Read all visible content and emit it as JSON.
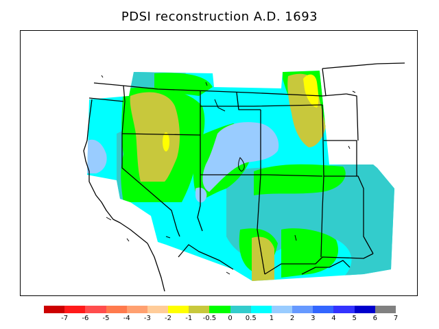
{
  "title": "PDSI reconstruction A.D. 1693",
  "legend": {
    "colors": [
      "#cc0000",
      "#ff1a1a",
      "#ff4d4d",
      "#ff7a4d",
      "#ffa070",
      "#ffcc99",
      "#ffff00",
      "#c8c83c",
      "#00ff00",
      "#33cccc",
      "#00ffff",
      "#99ccff",
      "#6699ff",
      "#3366ff",
      "#3333ff",
      "#0000cc",
      "#808080"
    ],
    "tick_labels": [
      "-7",
      "-6",
      "-5",
      "-4",
      "-3",
      "-2",
      "-1",
      "-0.5",
      "0",
      "0.5",
      "1",
      "2",
      "3",
      "4",
      "5",
      "6",
      "7"
    ]
  },
  "map_colors": {
    "dry_light": "#c8c83c",
    "yellow": "#ffff00",
    "green": "#00ff00",
    "teal": "#33cccc",
    "cyan": "#00ffff",
    "light_blue": "#99ccff"
  }
}
